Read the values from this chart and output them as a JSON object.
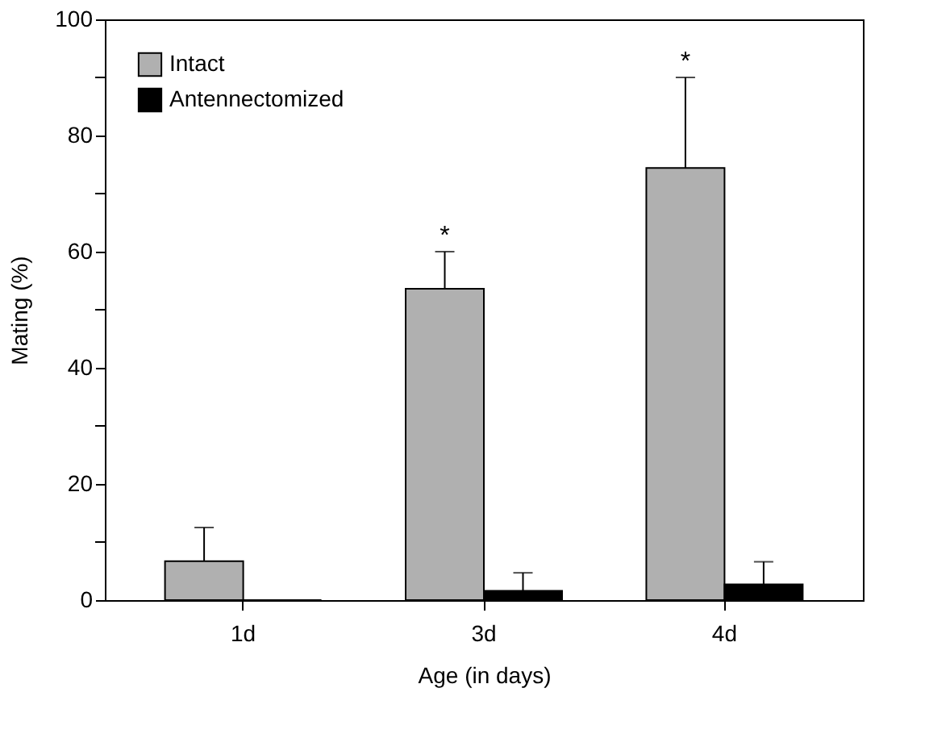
{
  "chart_data": {
    "type": "bar",
    "xlabel": "Age (in days)",
    "ylabel": "Mating (%)",
    "categories": [
      "1d",
      "3d",
      "4d"
    ],
    "series": [
      {
        "name": "Intact",
        "color": "#b0b0b0",
        "values": [
          6.7,
          53.6,
          74.4
        ],
        "errors": [
          [
            6.7,
            12.5
          ],
          [
            53.6,
            60.0
          ],
          [
            74.4,
            90.0
          ]
        ]
      },
      {
        "name": "Antennectomized",
        "color": "#000000",
        "values": [
          0,
          1.6,
          2.7
        ],
        "errors": [
          null,
          [
            1.6,
            4.7
          ],
          [
            2.7,
            6.6
          ]
        ]
      }
    ],
    "ylim": [
      0,
      100
    ],
    "yticks": [
      0,
      {
        "value": 10,
        "label": null
      },
      20,
      {
        "value": 30,
        "label": null
      },
      40,
      {
        "value": 50,
        "label": null
      },
      60,
      {
        "value": 70,
        "label": null
      },
      80,
      {
        "value": 90,
        "label": null
      },
      100
    ],
    "annotations": [
      "*",
      "*"
    ],
    "legend": "top left",
    "grid": false
  }
}
